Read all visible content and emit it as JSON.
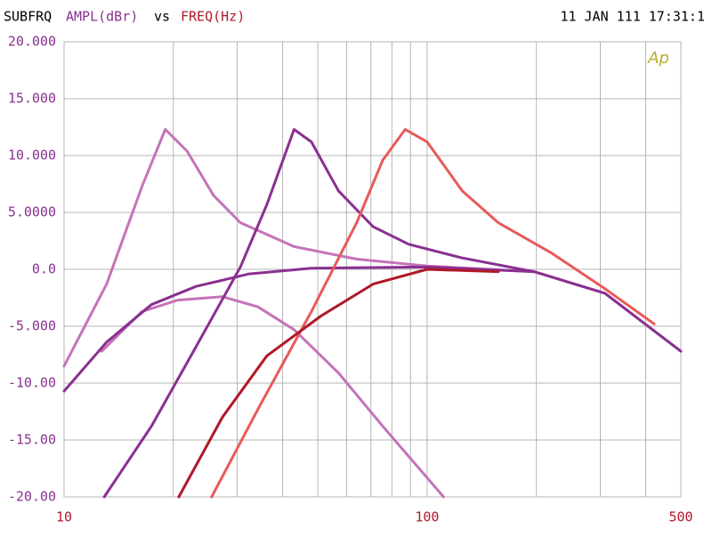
{
  "chart_data": {
    "type": "line",
    "label": "SUBFRQ",
    "y_label": "AMPL(dBr)",
    "vs": "vs",
    "x_label": "FREQ(Hz)",
    "timestamp": "11 JAN 111 17:31:1",
    "logo": "Ap",
    "xlog": true,
    "grid": true,
    "xlim": [
      10,
      500
    ],
    "xticks": [
      10,
      100,
      500
    ],
    "xgrid": [
      20,
      30,
      40,
      50,
      60,
      70,
      80,
      90,
      200,
      300,
      400
    ],
    "ylim": [
      -20,
      20
    ],
    "yticks": [
      {
        "value": 20,
        "label": "20.000"
      },
      {
        "value": 15,
        "label": "15.000"
      },
      {
        "value": 10,
        "label": "10.000"
      },
      {
        "value": 5,
        "label": "5.0000"
      },
      {
        "value": 0,
        "label": "0.0"
      },
      {
        "value": -5,
        "label": "-5.000"
      },
      {
        "value": -10,
        "label": "-10.00"
      },
      {
        "value": -15,
        "label": "-15.00"
      },
      {
        "value": -20,
        "label": "-20.00"
      }
    ],
    "series": [
      {
        "color": "#c474b8",
        "x": [
          10,
          13.1,
          16.4,
          19,
          21.8,
          25.8,
          30.6,
          43,
          64,
          100,
          197,
          309,
          500
        ],
        "values": [
          -8.5,
          -1.3,
          7.3,
          12.3,
          10.4,
          6.5,
          4.1,
          2.0,
          0.9,
          0.3,
          -0.2,
          -2.1,
          -7.2
        ]
      },
      {
        "color": "#c474b8",
        "x": [
          12.7,
          16.4,
          20.6,
          27.3,
          34.2,
          43,
          57,
          75.5,
          111
        ],
        "values": [
          -7.2,
          -3.7,
          -2.7,
          -2.4,
          -3.3,
          -5.3,
          -9.1,
          -13.8,
          -20
        ]
      },
      {
        "color": "#8a3090",
        "x": [
          10,
          13.1,
          17.4,
          23.1,
          32.4,
          48,
          100,
          197,
          309,
          500
        ],
        "values": [
          -10.7,
          -6.4,
          -3.1,
          -1.5,
          -0.4,
          0.1,
          0.2,
          -0.2,
          -2.1,
          -7.2
        ]
      },
      {
        "color": "#8a3090",
        "x": [
          12.9,
          17.4,
          23.1,
          30.6,
          36.2,
          43,
          48,
          57,
          71,
          89,
          125,
          197
        ],
        "values": [
          -20,
          -13.8,
          -6.8,
          0.2,
          5.7,
          12.3,
          11.2,
          6.9,
          3.75,
          2.2,
          1.0,
          -0.2
        ]
      },
      {
        "color": "#e85a5a",
        "x": [
          25.5,
          34.2,
          48,
          64,
          75.5,
          87,
          100,
          125,
          157,
          221,
          309,
          422
        ],
        "values": [
          -20,
          -12.3,
          -3.7,
          4.1,
          9.6,
          12.3,
          11.2,
          6.9,
          4.1,
          1.4,
          -1.7,
          -4.8
        ]
      },
      {
        "color": "#b01828",
        "x": [
          20.7,
          27.3,
          36.2,
          51,
          71,
          100,
          157
        ],
        "values": [
          -20,
          -13,
          -7.6,
          -4.1,
          -1.3,
          0,
          -0.2
        ]
      }
    ]
  }
}
